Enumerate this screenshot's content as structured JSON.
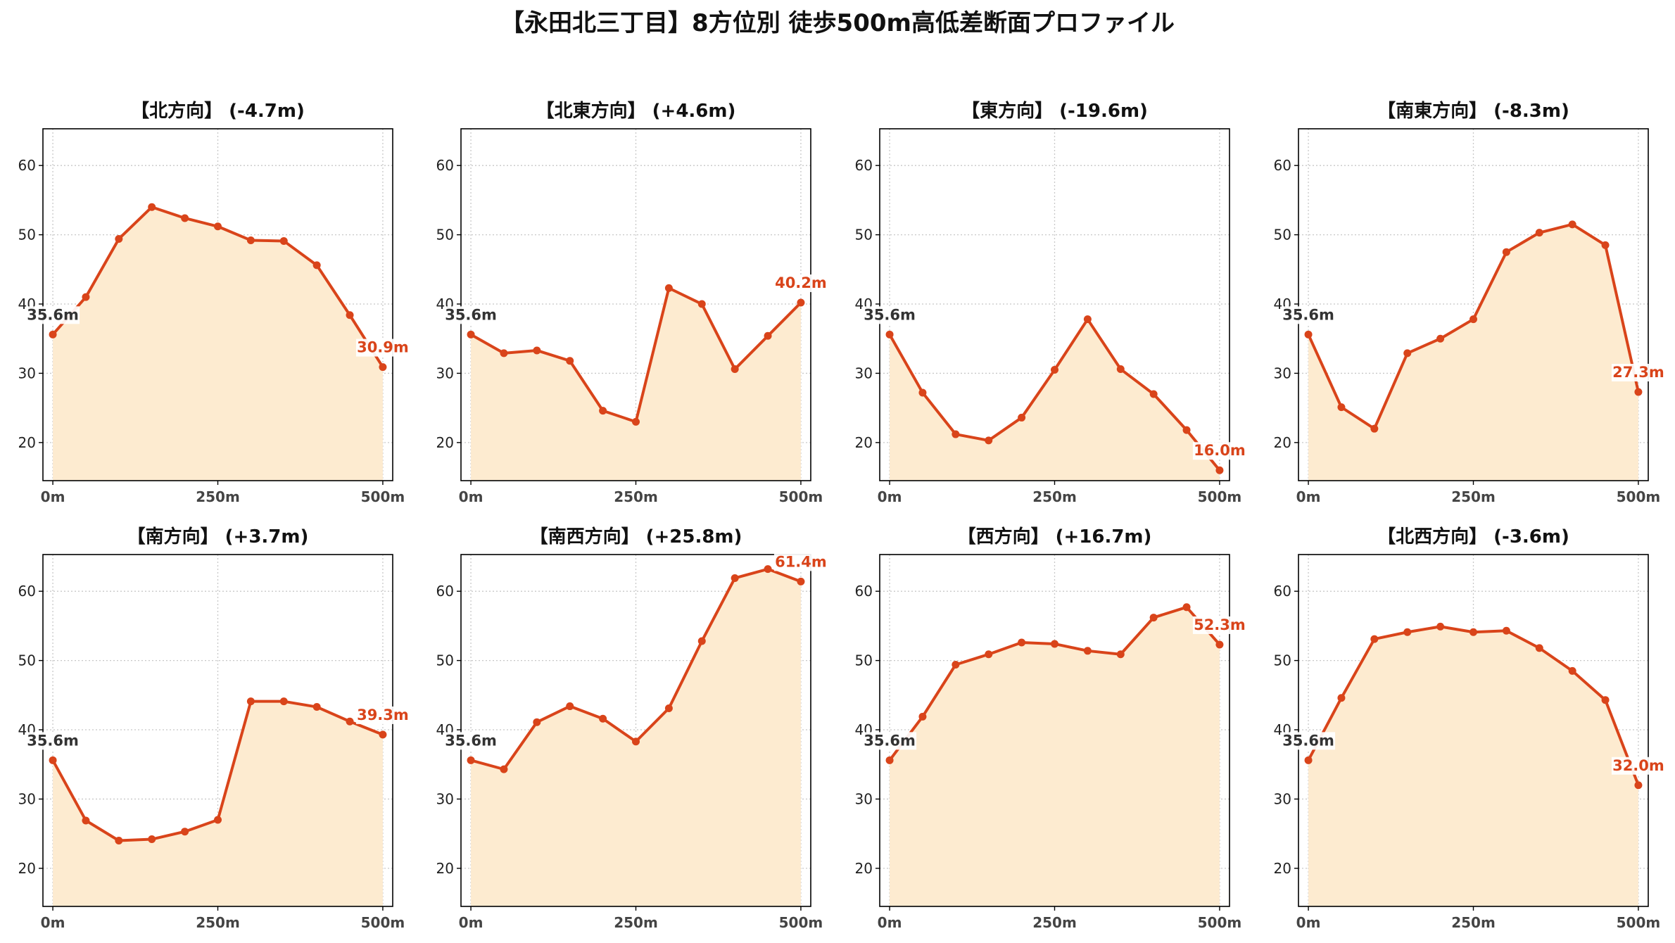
{
  "title": "【永田北三丁目】8方位別 徒歩500m高低差断面プロファイル",
  "colors": {
    "line": "#d9441a",
    "fill": "#fdebd0",
    "grid": "#c8c8c8",
    "start_label": "#333333",
    "end_label": "#d9441a"
  },
  "chart_data": [
    {
      "type": "area",
      "title": "【北方向】 (-4.7m)",
      "x": [
        0,
        50,
        100,
        150,
        200,
        250,
        300,
        350,
        400,
        450,
        500
      ],
      "values": [
        35.6,
        41.0,
        49.4,
        54.0,
        52.4,
        51.2,
        49.2,
        49.1,
        45.6,
        38.4,
        30.9
      ],
      "xticks": [
        "0m",
        "250m",
        "500m"
      ],
      "yticks": [
        20,
        30,
        40,
        50,
        60
      ],
      "ylim": [
        14.5,
        65.3
      ],
      "grid": true,
      "start_label": "35.6m",
      "end_label": "30.9m"
    },
    {
      "type": "area",
      "title": "【北東方向】 (+4.6m)",
      "x": [
        0,
        50,
        100,
        150,
        200,
        250,
        300,
        350,
        400,
        450,
        500
      ],
      "values": [
        35.6,
        32.9,
        33.3,
        31.8,
        24.6,
        23.0,
        42.3,
        40.0,
        30.6,
        35.4,
        40.2
      ],
      "xticks": [
        "0m",
        "250m",
        "500m"
      ],
      "yticks": [
        20,
        30,
        40,
        50,
        60
      ],
      "ylim": [
        14.5,
        65.3
      ],
      "grid": true,
      "start_label": "35.6m",
      "end_label": "40.2m"
    },
    {
      "type": "area",
      "title": "【東方向】 (-19.6m)",
      "x": [
        0,
        50,
        100,
        150,
        200,
        250,
        300,
        350,
        400,
        450,
        500
      ],
      "values": [
        35.6,
        27.2,
        21.2,
        20.3,
        23.6,
        30.5,
        37.8,
        30.6,
        27.0,
        21.8,
        16.0
      ],
      "xticks": [
        "0m",
        "250m",
        "500m"
      ],
      "yticks": [
        20,
        30,
        40,
        50,
        60
      ],
      "ylim": [
        14.5,
        65.3
      ],
      "grid": true,
      "start_label": "35.6m",
      "end_label": "16.0m"
    },
    {
      "type": "area",
      "title": "【南東方向】 (-8.3m)",
      "x": [
        0,
        50,
        100,
        150,
        200,
        250,
        300,
        350,
        400,
        450,
        500
      ],
      "values": [
        35.6,
        25.1,
        22.0,
        32.9,
        35.0,
        37.8,
        47.5,
        50.3,
        51.5,
        48.5,
        27.3
      ],
      "xticks": [
        "0m",
        "250m",
        "500m"
      ],
      "yticks": [
        20,
        30,
        40,
        50,
        60
      ],
      "ylim": [
        14.5,
        65.3
      ],
      "grid": true,
      "start_label": "35.6m",
      "end_label": "27.3m"
    },
    {
      "type": "area",
      "title": "【南方向】 (+3.7m)",
      "x": [
        0,
        50,
        100,
        150,
        200,
        250,
        300,
        350,
        400,
        450,
        500
      ],
      "values": [
        35.6,
        26.9,
        24.0,
        24.2,
        25.3,
        27.0,
        44.1,
        44.1,
        43.3,
        41.2,
        39.3
      ],
      "xticks": [
        "0m",
        "250m",
        "500m"
      ],
      "yticks": [
        20,
        30,
        40,
        50,
        60
      ],
      "ylim": [
        14.5,
        65.3
      ],
      "grid": true,
      "start_label": "35.6m",
      "end_label": "39.3m"
    },
    {
      "type": "area",
      "title": "【南西方向】 (+25.8m)",
      "x": [
        0,
        50,
        100,
        150,
        200,
        250,
        300,
        350,
        400,
        450,
        500
      ],
      "values": [
        35.6,
        34.3,
        41.1,
        43.4,
        41.6,
        38.3,
        43.1,
        52.8,
        61.9,
        63.2,
        61.4
      ],
      "xticks": [
        "0m",
        "250m",
        "500m"
      ],
      "yticks": [
        20,
        30,
        40,
        50,
        60
      ],
      "ylim": [
        14.5,
        65.3
      ],
      "grid": true,
      "start_label": "35.6m",
      "end_label": "61.4m"
    },
    {
      "type": "area",
      "title": "【西方向】 (+16.7m)",
      "x": [
        0,
        50,
        100,
        150,
        200,
        250,
        300,
        350,
        400,
        450,
        500
      ],
      "values": [
        35.6,
        41.9,
        49.4,
        50.9,
        52.6,
        52.4,
        51.4,
        50.9,
        56.2,
        57.7,
        52.3
      ],
      "xticks": [
        "0m",
        "250m",
        "500m"
      ],
      "yticks": [
        20,
        30,
        40,
        50,
        60
      ],
      "ylim": [
        14.5,
        65.3
      ],
      "grid": true,
      "start_label": "35.6m",
      "end_label": "52.3m"
    },
    {
      "type": "area",
      "title": "【北西方向】 (-3.6m)",
      "x": [
        0,
        50,
        100,
        150,
        200,
        250,
        300,
        350,
        400,
        450,
        500
      ],
      "values": [
        35.6,
        44.6,
        53.1,
        54.1,
        54.9,
        54.1,
        54.3,
        51.8,
        48.5,
        44.3,
        32.0
      ],
      "xticks": [
        "0m",
        "250m",
        "500m"
      ],
      "yticks": [
        20,
        30,
        40,
        50,
        60
      ],
      "ylim": [
        14.5,
        65.3
      ],
      "grid": true,
      "start_label": "35.6m",
      "end_label": "32.0m"
    }
  ]
}
